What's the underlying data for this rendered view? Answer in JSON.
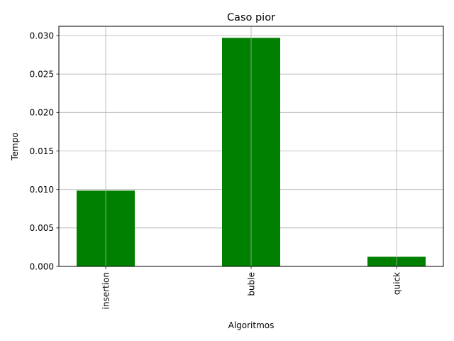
{
  "chart_data": {
    "type": "bar",
    "title": "Caso pior",
    "xlabel": "Algoritmos",
    "ylabel": "Tempo",
    "categories": [
      "insertion",
      "buble",
      "quick"
    ],
    "values": [
      0.00985,
      0.0297,
      0.00125
    ],
    "ylim": [
      0,
      0.0312
    ],
    "yticks": [
      0.0,
      0.005,
      0.01,
      0.015,
      0.02,
      0.025,
      0.03
    ],
    "ytick_labels": [
      "0.000",
      "0.005",
      "0.010",
      "0.015",
      "0.020",
      "0.025",
      "0.030"
    ],
    "bar_color": "#008000",
    "grid": true,
    "legend": "none",
    "xtick_rotation": "vertical"
  }
}
